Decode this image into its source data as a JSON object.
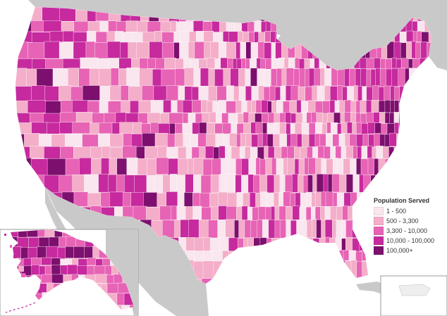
{
  "legend": {
    "title": "Population Served",
    "items": [
      {
        "label": "1 - 500",
        "color": "#f9e6ef"
      },
      {
        "label": "500 - 3,300",
        "color": "#f4aec9"
      },
      {
        "label": "3,300 - 10,000",
        "color": "#e763b5"
      },
      {
        "label": "10,000 - 100,000",
        "color": "#c62a9e"
      },
      {
        "label": "100,000+",
        "color": "#7d0f6e"
      }
    ]
  },
  "colors": {
    "background": "#ffffff",
    "land_outside": "#c9c9c9",
    "water": "#ffffff",
    "mosaic_palette": [
      "#f9e6ef",
      "#f4aec9",
      "#e763b5",
      "#c62a9e",
      "#7d0f6e"
    ]
  }
}
